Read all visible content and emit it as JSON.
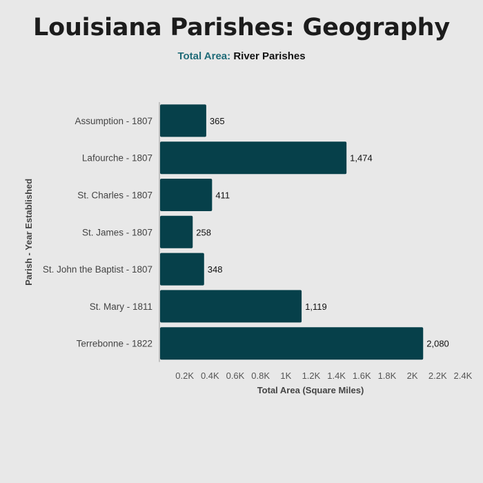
{
  "title": "Louisiana Parishes: Geography",
  "subtitle": {
    "accent": "Total Area:",
    "rest": "River Parishes"
  },
  "colors": {
    "bar": "#06404a",
    "accent": "#1f6b78",
    "background": "#e8e8e8"
  },
  "chart_data": {
    "type": "bar",
    "orientation": "horizontal",
    "categories": [
      "Assumption - 1807",
      "Lafourche - 1807",
      "St. Charles - 1807",
      "St. James - 1807",
      "St. John the Baptist - 1807",
      "St. Mary - 1811",
      "Terrebonne - 1822"
    ],
    "values": [
      365,
      1474,
      411,
      258,
      348,
      1119,
      2080
    ],
    "value_labels": [
      "365",
      "1,474",
      "411",
      "258",
      "348",
      "1,119",
      "2,080"
    ],
    "xlabel": "Total Area (Square Miles)",
    "ylabel": "Parish - Year Established",
    "xlim": [
      0,
      2400
    ],
    "x_ticks": [
      200,
      400,
      600,
      800,
      1000,
      1200,
      1400,
      1600,
      1800,
      2000,
      2200,
      2400
    ],
    "x_tick_labels": [
      "0.2K",
      "0.4K",
      "0.6K",
      "0.8K",
      "1K",
      "1.2K",
      "1.4K",
      "1.6K",
      "1.8K",
      "2K",
      "2.2K",
      "2.4K"
    ],
    "grid": false,
    "legend": "none"
  }
}
